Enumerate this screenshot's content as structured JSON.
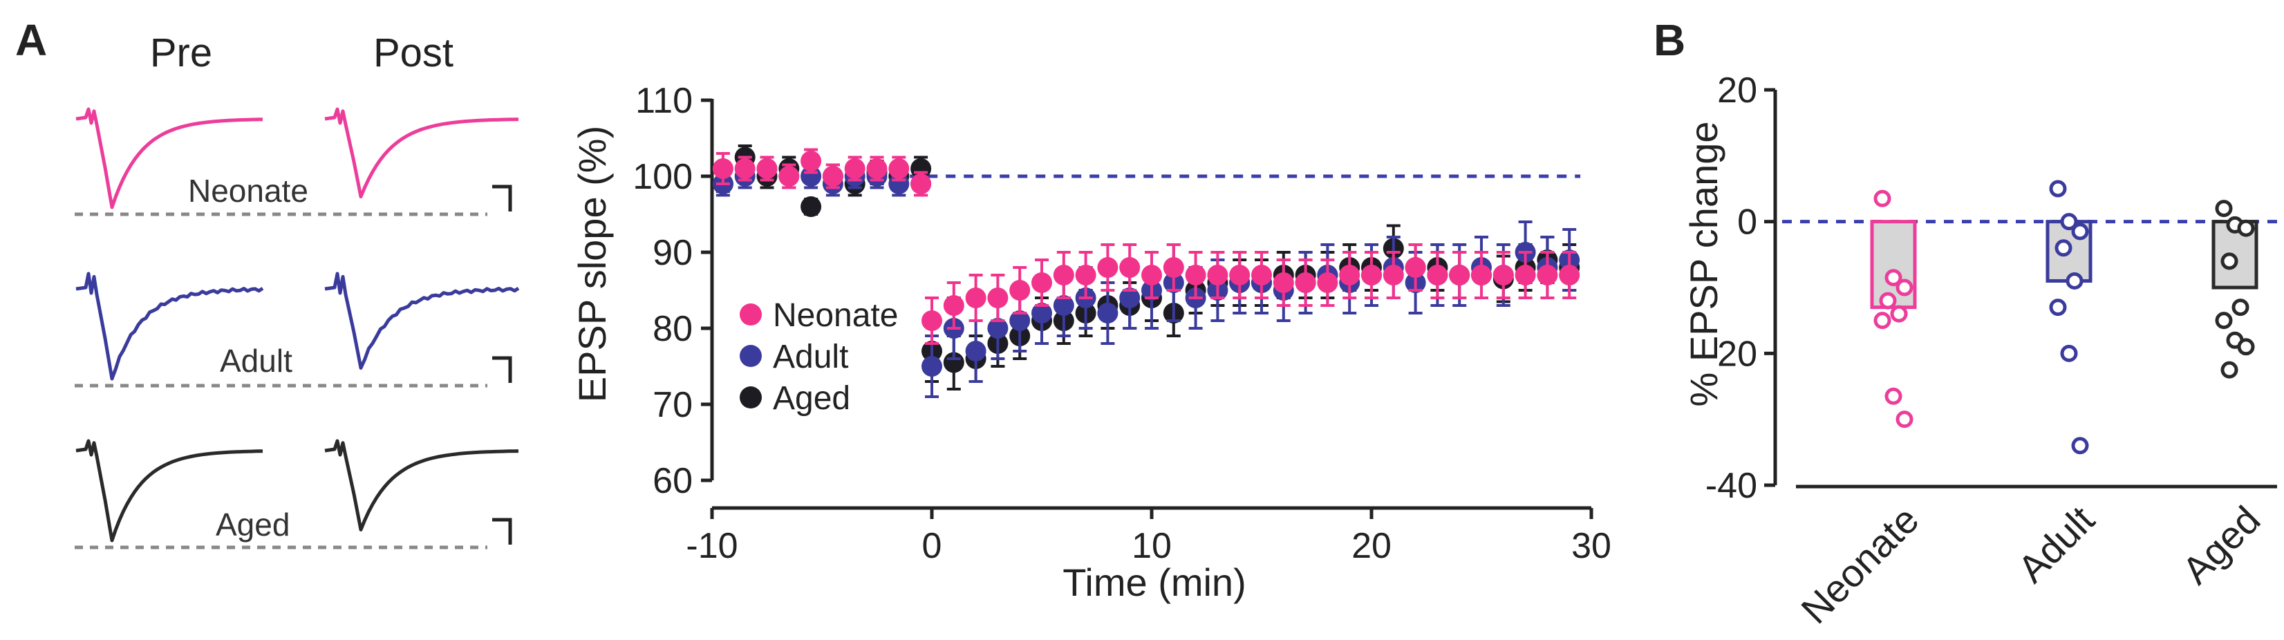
{
  "panel_a": {
    "letter": "A",
    "pre_label": "Pre",
    "post_label": "Post",
    "trace_groups": [
      {
        "label": "Neonate",
        "color": "#ec3d9a"
      },
      {
        "label": "Adult",
        "color": "#3a3b9c"
      },
      {
        "label": "Aged",
        "color": "#2a2a2a"
      }
    ]
  },
  "panel_b_letter": "B",
  "chart_data": [
    {
      "type": "scatter",
      "title": "",
      "xlabel": "Time (min)",
      "ylabel": "EPSP slope (%)",
      "xlim": [
        -10,
        30
      ],
      "ylim": [
        60,
        110
      ],
      "xticks": [
        -10,
        0,
        10,
        20,
        30
      ],
      "yticks": [
        60,
        70,
        80,
        90,
        100,
        110
      ],
      "reference_line": 100,
      "legend_position": "center-left",
      "series": [
        {
          "name": "Aged",
          "color": "#1c1c22",
          "x": [
            -9.5,
            -8.5,
            -7.5,
            -6.5,
            -5.5,
            -4.5,
            -3.5,
            -2.5,
            -1.5,
            -0.5,
            0,
            1,
            2,
            3,
            4,
            5,
            6,
            7,
            8,
            9,
            10,
            11,
            12,
            13,
            14,
            15,
            16,
            17,
            18,
            19,
            20,
            21,
            22,
            23,
            24,
            25,
            26,
            27,
            28,
            29
          ],
          "y": [
            99,
            102.5,
            100,
            101,
            96,
            100,
            99,
            100.5,
            100,
            101,
            77,
            75.5,
            76,
            78,
            79,
            81,
            81,
            82,
            83,
            83,
            84,
            82,
            85,
            86,
            86,
            86,
            87,
            87,
            87,
            88,
            88,
            90.5,
            88,
            88,
            87,
            87,
            86.5,
            88,
            89,
            88
          ],
          "err": [
            1,
            1.5,
            1.5,
            1.5,
            1,
            1.5,
            1.5,
            1.5,
            1.5,
            1.5,
            4,
            3.5,
            3,
            3,
            3,
            3,
            3,
            3,
            3,
            3,
            3,
            3,
            3,
            3,
            3,
            3,
            3,
            3,
            3,
            3,
            3,
            3,
            3,
            3,
            3,
            3,
            3,
            3,
            3,
            3
          ]
        },
        {
          "name": "Adult",
          "color": "#3a3b9c",
          "x": [
            -9.5,
            -8.5,
            -7.5,
            -6.5,
            -5.5,
            -4.5,
            -3.5,
            -2.5,
            -1.5,
            -0.5,
            0,
            1,
            2,
            3,
            4,
            5,
            6,
            7,
            8,
            9,
            10,
            11,
            12,
            13,
            14,
            15,
            16,
            17,
            18,
            19,
            20,
            21,
            22,
            23,
            24,
            25,
            26,
            27,
            28,
            29
          ],
          "y": [
            99,
            100,
            101,
            100,
            100,
            99,
            100,
            100,
            99,
            99,
            75,
            80,
            77,
            80,
            81,
            82,
            83,
            84,
            82,
            84,
            85,
            86,
            84,
            85,
            86,
            86,
            85,
            86,
            87,
            86,
            87,
            88,
            86,
            87,
            87,
            88,
            87,
            90,
            88,
            89
          ],
          "err": [
            1.5,
            1.5,
            1.5,
            1.5,
            1.5,
            1.5,
            1.5,
            1.5,
            1.5,
            1.5,
            4,
            4,
            4,
            4,
            4,
            4,
            4,
            4,
            4,
            4,
            5,
            5,
            4,
            4,
            4,
            4,
            4,
            4,
            4,
            4,
            4,
            4,
            4,
            4,
            4,
            4,
            4,
            4,
            4,
            4
          ]
        },
        {
          "name": "Neonate",
          "color": "#f2338c",
          "x": [
            -9.5,
            -8.5,
            -7.5,
            -6.5,
            -5.5,
            -4.5,
            -3.5,
            -2.5,
            -1.5,
            -0.5,
            0,
            1,
            2,
            3,
            4,
            5,
            6,
            7,
            8,
            9,
            10,
            11,
            12,
            13,
            14,
            15,
            16,
            17,
            18,
            19,
            20,
            21,
            22,
            23,
            24,
            25,
            26,
            27,
            28,
            29
          ],
          "y": [
            101,
            101,
            101,
            100,
            102,
            100,
            101,
            101,
            101,
            99,
            81,
            83,
            84,
            84,
            85,
            86,
            87,
            87,
            88,
            88,
            87,
            88,
            87,
            87,
            87,
            87,
            86,
            86,
            86,
            87,
            87,
            87,
            88,
            87,
            87,
            87,
            87,
            87,
            87,
            87
          ],
          "err": [
            2,
            1.5,
            1.5,
            1.5,
            1.5,
            1.5,
            1.5,
            1.5,
            1.5,
            1.5,
            3,
            3,
            3,
            3,
            3,
            3,
            3,
            3,
            3,
            3,
            3,
            3,
            3,
            3,
            3,
            3,
            3,
            3,
            3,
            3,
            3,
            3,
            3,
            3,
            3,
            3,
            3,
            3,
            3,
            3
          ]
        }
      ]
    },
    {
      "type": "bar",
      "title": "",
      "xlabel": "",
      "ylabel": "% EPSP change",
      "ylim": [
        -40,
        20
      ],
      "yticks": [
        -40,
        -20,
        0,
        20
      ],
      "reference_line": 0,
      "categories": [
        "Neonate",
        "Adult",
        "Aged"
      ],
      "values": [
        -13,
        -9,
        -10
      ],
      "bar_color": "#d6d6d6",
      "edge_colors": [
        "#ec3d9a",
        "#3a3b9c",
        "#2a2a2a"
      ],
      "points": [
        [
          3.5,
          -8.5,
          -10,
          -12,
          -14,
          -15,
          -26.5,
          -30
        ],
        [
          5,
          0,
          -1.5,
          -4,
          -9,
          -13,
          -20,
          -34
        ],
        [
          2,
          -0.5,
          -1,
          -6,
          -13,
          -15,
          -18,
          -19,
          -22.5
        ]
      ]
    }
  ]
}
